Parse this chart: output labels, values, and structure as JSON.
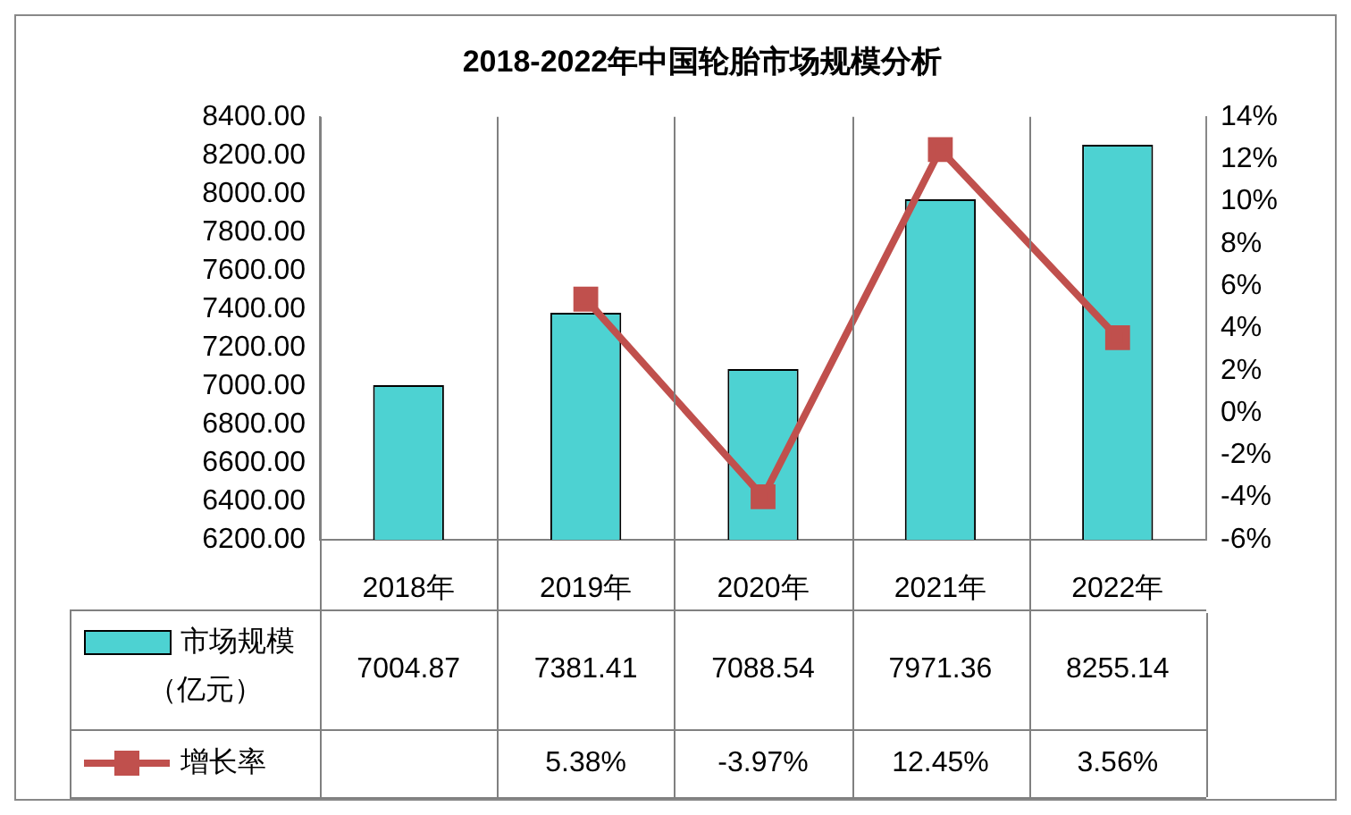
{
  "chart_data": {
    "type": "bar",
    "title": "2018-2022年中国轮胎市场规模分析",
    "categories": [
      "2018年",
      "2019年",
      "2020年",
      "2021年",
      "2022年"
    ],
    "series": [
      {
        "name": "市场规模（亿元）",
        "color": "#4dd2d2",
        "values": [
          7004.87,
          7381.41,
          7088.54,
          7971.36,
          8255.14
        ],
        "value_labels": [
          "7004.87",
          "7381.41",
          "7088.54",
          "7971.36",
          "8255.14"
        ]
      },
      {
        "name": "增长率",
        "type": "line",
        "axis": "y2",
        "color": "#c0504d",
        "values": [
          null,
          5.38,
          -3.97,
          12.45,
          3.56
        ],
        "value_labels": [
          null,
          "5.38%",
          "-3.97%",
          "12.45%",
          "3.56%"
        ]
      }
    ],
    "ylim": [
      6200,
      8400
    ],
    "yticks": [
      {
        "value": 6200,
        "label": "6200.00"
      },
      {
        "value": 6400,
        "label": "6400.00"
      },
      {
        "value": 6600,
        "label": "6600.00"
      },
      {
        "value": 6800,
        "label": "6800.00"
      },
      {
        "value": 7000,
        "label": "7000.00"
      },
      {
        "value": 7200,
        "label": "7200.00"
      },
      {
        "value": 7400,
        "label": "7400.00"
      },
      {
        "value": 7600,
        "label": "7600.00"
      },
      {
        "value": 7800,
        "label": "7800.00"
      },
      {
        "value": 8000,
        "label": "8000.00"
      },
      {
        "value": 8200,
        "label": "8200.00"
      },
      {
        "value": 8400,
        "label": "8400.00"
      }
    ],
    "y2lim": [
      -6,
      14
    ],
    "y2ticks": [
      {
        "value": -6,
        "label": "-6%"
      },
      {
        "value": -4,
        "label": "-4%"
      },
      {
        "value": -2,
        "label": "-2%"
      },
      {
        "value": 0,
        "label": "0%"
      },
      {
        "value": 2,
        "label": "2%"
      },
      {
        "value": 4,
        "label": "4%"
      },
      {
        "value": 6,
        "label": "6%"
      },
      {
        "value": 8,
        "label": "8%"
      },
      {
        "value": 10,
        "label": "10%"
      },
      {
        "value": 12,
        "label": "12%"
      },
      {
        "value": 14,
        "label": "14%"
      }
    ],
    "legend": "bottom",
    "marker": "square"
  }
}
